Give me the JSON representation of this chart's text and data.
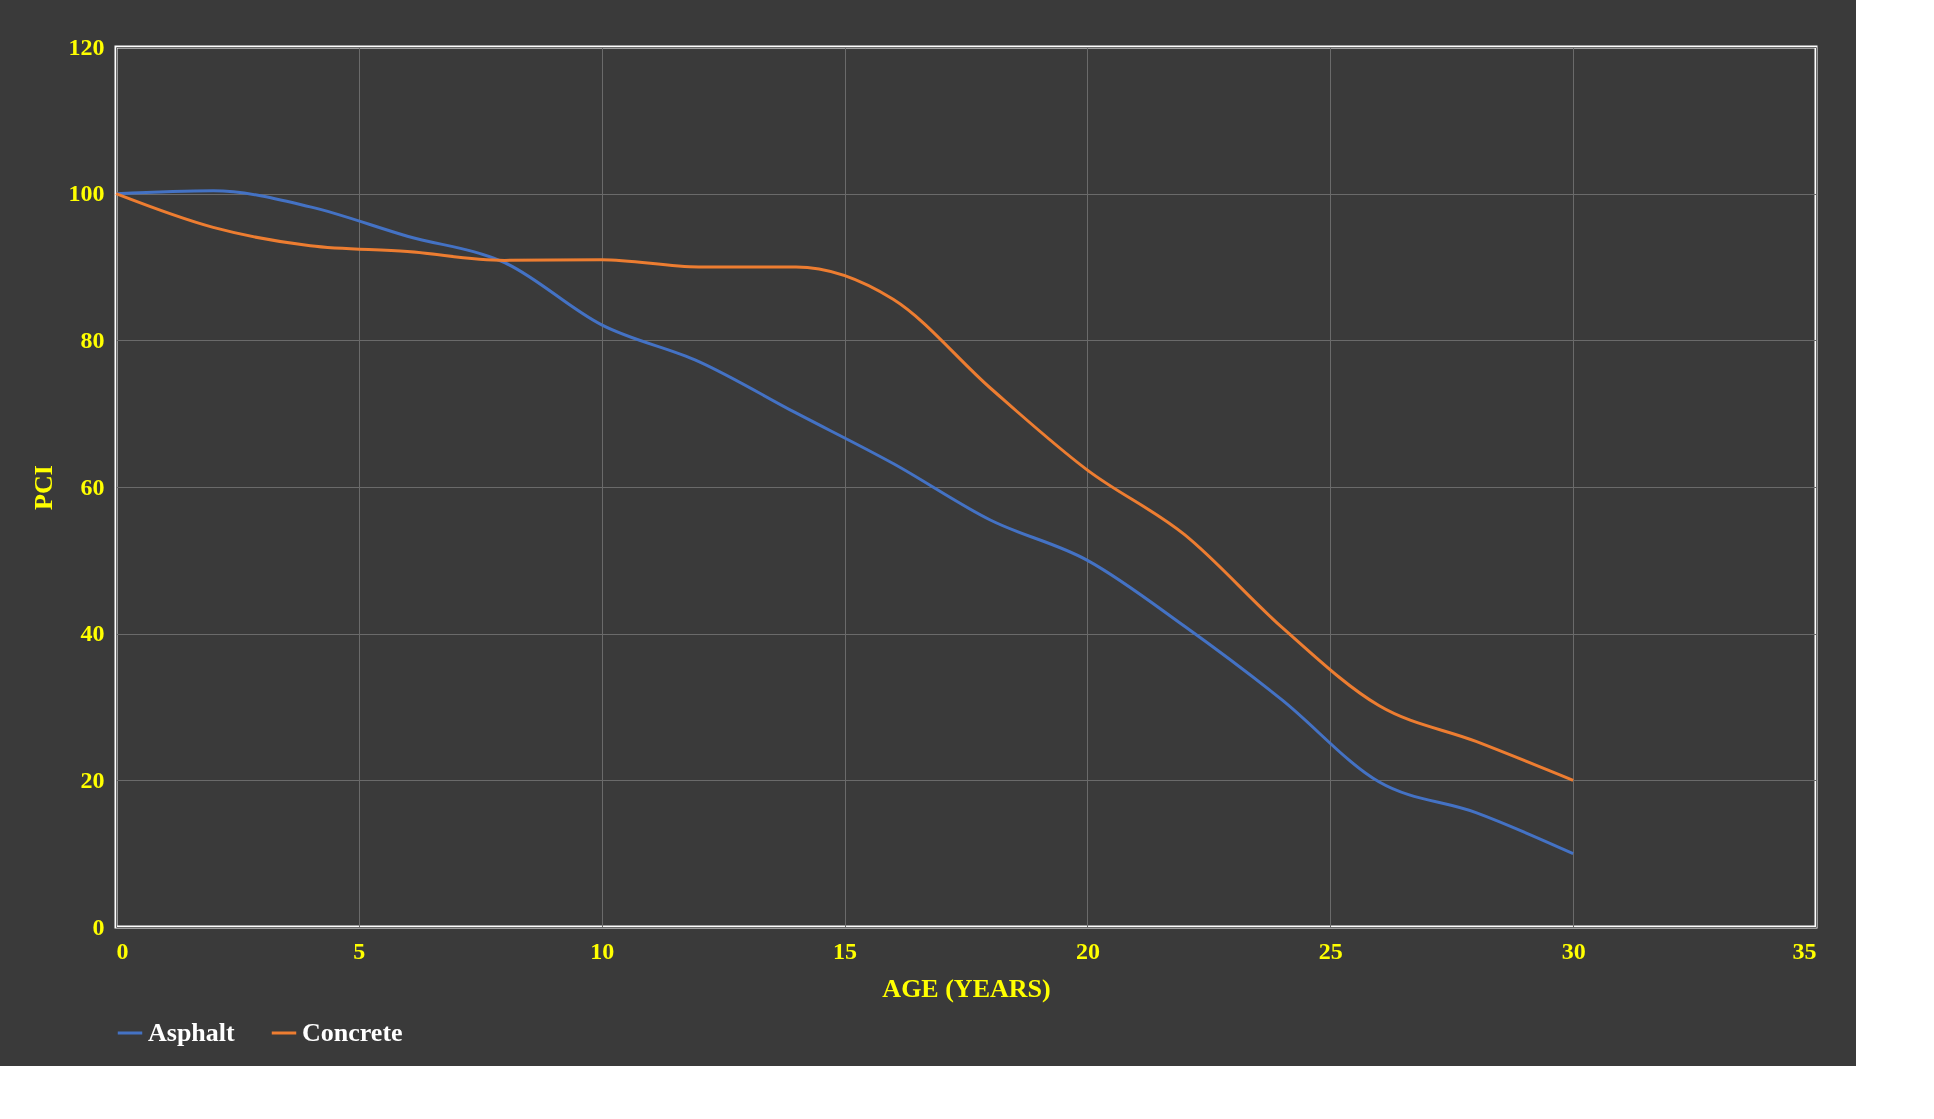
{
  "chart_data": {
    "type": "line",
    "xlabel": "AGE (YEARS)",
    "ylabel": "PCI",
    "xlim": [
      0,
      35
    ],
    "ylim": [
      0,
      120
    ],
    "xticks": [
      0,
      5,
      10,
      15,
      20,
      25,
      30,
      35
    ],
    "yticks": [
      0,
      20,
      40,
      60,
      80,
      100,
      120
    ],
    "grid": true,
    "legend": "bottom",
    "marker": "none",
    "line_style": "solid",
    "x": [
      0,
      2,
      4,
      6,
      8,
      10,
      12,
      14,
      16,
      18,
      20,
      22,
      24,
      26,
      28,
      30
    ],
    "series": [
      {
        "name": "Asphalt",
        "color": "#4472c4",
        "values": [
          100,
          100.4,
          98.2,
          94.2,
          90.6,
          82.1,
          77.1,
          70.1,
          63.2,
          55.5,
          50,
          41,
          31,
          19.8,
          15.6,
          10
        ]
      },
      {
        "name": "Concrete",
        "color": "#ed7d31",
        "values": [
          100,
          95.4,
          92.9,
          92.1,
          90.9,
          91,
          90,
          90,
          85.6,
          73.5,
          62.3,
          53.5,
          40.9,
          30.2,
          25.3,
          20
        ]
      }
    ]
  }
}
